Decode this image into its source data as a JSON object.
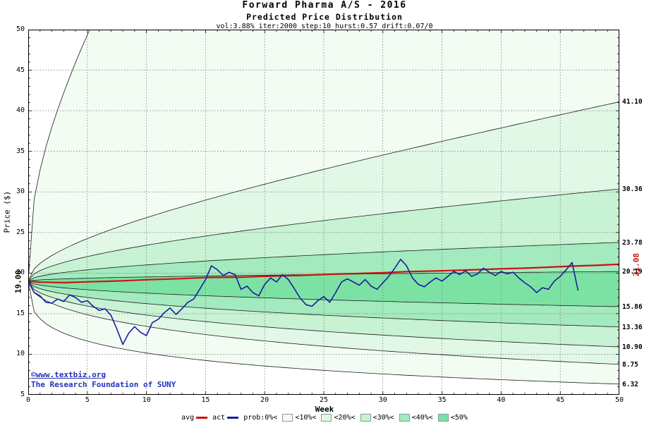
{
  "header": {
    "title": "Forward Pharma A/S - 2016",
    "subtitle": "Predicted Price Distribution",
    "params": "vol:3.88% iter:2000 step:10 hurst:0.57 drift:0.07/0"
  },
  "axes": {
    "y_label": "Price ($)",
    "x_label": "Week",
    "start_price_label": "19.00",
    "avg_end_label": "21.08"
  },
  "watermark": {
    "line1": "©www.textbiz.org",
    "line2": "The Research Foundation of SUNY"
  },
  "legend": {
    "items": [
      {
        "kind": "line",
        "label": "avg",
        "color": "#cc1111"
      },
      {
        "kind": "line",
        "label": "act",
        "color": "#1c1c9e"
      },
      {
        "kind": "label",
        "label": "prob:0%<"
      },
      {
        "kind": "swatch",
        "label": "<10%<",
        "color": "#f3fcf3"
      },
      {
        "kind": "swatch",
        "label": "<20%<",
        "color": "#e1f8e6"
      },
      {
        "kind": "swatch",
        "label": "<30%<",
        "color": "#c7f2d3"
      },
      {
        "kind": "swatch",
        "label": "<40%<",
        "color": "#a3eabe"
      },
      {
        "kind": "swatch",
        "label": "<50%",
        "color": "#7ce2a4"
      }
    ]
  },
  "chart_data": {
    "type": "area",
    "title": "Forward Pharma A/S - 2016 Predicted Price Distribution",
    "xlabel": "Week",
    "ylabel": "Price ($)",
    "xlim": [
      0,
      50
    ],
    "ylim": [
      5,
      50
    ],
    "x_ticks": [
      0,
      5,
      10,
      15,
      20,
      25,
      30,
      35,
      40,
      45,
      50
    ],
    "y_ticks": [
      5,
      10,
      15,
      20,
      25,
      30,
      35,
      40,
      45,
      50
    ],
    "start_price": 19.0,
    "band_colors": [
      "#f3fcf3",
      "#e1f8e6",
      "#c7f2d3",
      "#a3eabe",
      "#7ce2a4"
    ],
    "upper_bounds": [
      {
        "p": "0%",
        "exit_week": 5.2
      },
      {
        "p": "10%",
        "end": 41.1
      },
      {
        "p": "20%",
        "end": 30.36
      },
      {
        "p": "30%",
        "end": 23.78
      },
      {
        "p": "40%",
        "end": 20.19
      }
    ],
    "lower_bounds": [
      {
        "p": "40%",
        "end": 15.86
      },
      {
        "p": "30%",
        "end": 13.36
      },
      {
        "p": "20%",
        "end": 10.9
      },
      {
        "p": "10%",
        "end": 8.75
      },
      {
        "p": "0%",
        "end": 6.32
      }
    ],
    "right_labels": [
      "41.10",
      "30.36",
      "23.78",
      "20.19",
      "15.86",
      "13.36",
      "10.90",
      "8.75",
      "6.32"
    ],
    "series": [
      {
        "name": "avg",
        "color": "#cc1111",
        "width": 2.2,
        "points": [
          [
            0,
            19.0
          ],
          [
            1,
            18.88
          ],
          [
            3,
            18.82
          ],
          [
            5,
            18.92
          ],
          [
            8,
            19.05
          ],
          [
            10,
            19.18
          ],
          [
            13,
            19.32
          ],
          [
            15,
            19.45
          ],
          [
            18,
            19.5
          ],
          [
            20,
            19.6
          ],
          [
            23,
            19.72
          ],
          [
            25,
            19.82
          ],
          [
            28,
            19.95
          ],
          [
            30,
            20.05
          ],
          [
            32,
            20.18
          ],
          [
            35,
            20.28
          ],
          [
            38,
            20.42
          ],
          [
            40,
            20.52
          ],
          [
            42,
            20.6
          ],
          [
            44,
            20.72
          ],
          [
            46,
            20.85
          ],
          [
            48,
            20.95
          ],
          [
            50,
            21.08
          ]
        ]
      },
      {
        "name": "act",
        "color": "#1c1c9e",
        "width": 1.6,
        "points": [
          [
            0,
            19
          ],
          [
            0.5,
            17.6
          ],
          [
            1,
            17.2
          ],
          [
            1.5,
            16.4
          ],
          [
            2,
            16.3
          ],
          [
            2.5,
            16.8
          ],
          [
            3,
            16.5
          ],
          [
            3.5,
            17.3
          ],
          [
            4,
            17
          ],
          [
            4.5,
            16.4
          ],
          [
            5,
            16.6
          ],
          [
            5.5,
            15.9
          ],
          [
            6,
            15.4
          ],
          [
            6.5,
            15.6
          ],
          [
            7,
            14.8
          ],
          [
            7.5,
            13.1
          ],
          [
            8,
            11.2
          ],
          [
            8.5,
            12.6
          ],
          [
            9,
            13.4
          ],
          [
            9.5,
            12.7
          ],
          [
            10,
            12.3
          ],
          [
            10.5,
            13.9
          ],
          [
            11,
            14.3
          ],
          [
            11.5,
            15.1
          ],
          [
            12,
            15.7
          ],
          [
            12.5,
            14.9
          ],
          [
            13,
            15.6
          ],
          [
            13.5,
            16.4
          ],
          [
            14,
            16.8
          ],
          [
            14.5,
            18
          ],
          [
            15,
            19.2
          ],
          [
            15.5,
            20.9
          ],
          [
            16,
            20.4
          ],
          [
            16.5,
            19.7
          ],
          [
            17,
            20.1
          ],
          [
            17.5,
            19.8
          ],
          [
            18,
            18
          ],
          [
            18.5,
            18.4
          ],
          [
            19,
            17.6
          ],
          [
            19.5,
            17.2
          ],
          [
            20,
            18.6
          ],
          [
            20.5,
            19.4
          ],
          [
            21,
            18.9
          ],
          [
            21.5,
            19.8
          ],
          [
            22,
            19.2
          ],
          [
            22.5,
            18.1
          ],
          [
            23,
            16.9
          ],
          [
            23.5,
            16.1
          ],
          [
            24,
            15.9
          ],
          [
            24.5,
            16.6
          ],
          [
            25,
            17.1
          ],
          [
            25.5,
            16.4
          ],
          [
            26,
            17.6
          ],
          [
            26.5,
            18.9
          ],
          [
            27,
            19.3
          ],
          [
            27.5,
            18.9
          ],
          [
            28,
            18.5
          ],
          [
            28.5,
            19.2
          ],
          [
            29,
            18.4
          ],
          [
            29.5,
            18
          ],
          [
            30,
            18.8
          ],
          [
            30.5,
            19.6
          ],
          [
            31,
            20.6
          ],
          [
            31.5,
            21.7
          ],
          [
            32,
            20.9
          ],
          [
            32.5,
            19.4
          ],
          [
            33,
            18.6
          ],
          [
            33.5,
            18.3
          ],
          [
            34,
            18.9
          ],
          [
            34.5,
            19.4
          ],
          [
            35,
            19
          ],
          [
            35.5,
            19.6
          ],
          [
            36,
            20.2
          ],
          [
            36.5,
            19.8
          ],
          [
            37,
            20.3
          ],
          [
            37.5,
            19.6
          ],
          [
            38,
            19.9
          ],
          [
            38.5,
            20.6
          ],
          [
            39,
            20.1
          ],
          [
            39.5,
            19.7
          ],
          [
            40,
            20.2
          ],
          [
            40.5,
            19.9
          ],
          [
            41,
            20.1
          ],
          [
            41.5,
            19.4
          ],
          [
            42,
            18.8
          ],
          [
            42.5,
            18.3
          ],
          [
            43,
            17.6
          ],
          [
            43.5,
            18.2
          ],
          [
            44,
            18
          ],
          [
            44.5,
            19
          ],
          [
            45,
            19.6
          ],
          [
            45.5,
            20.4
          ],
          [
            46,
            21.3
          ],
          [
            46.5,
            17.9
          ]
        ]
      }
    ],
    "grid": true,
    "legend_position": "bottom"
  }
}
